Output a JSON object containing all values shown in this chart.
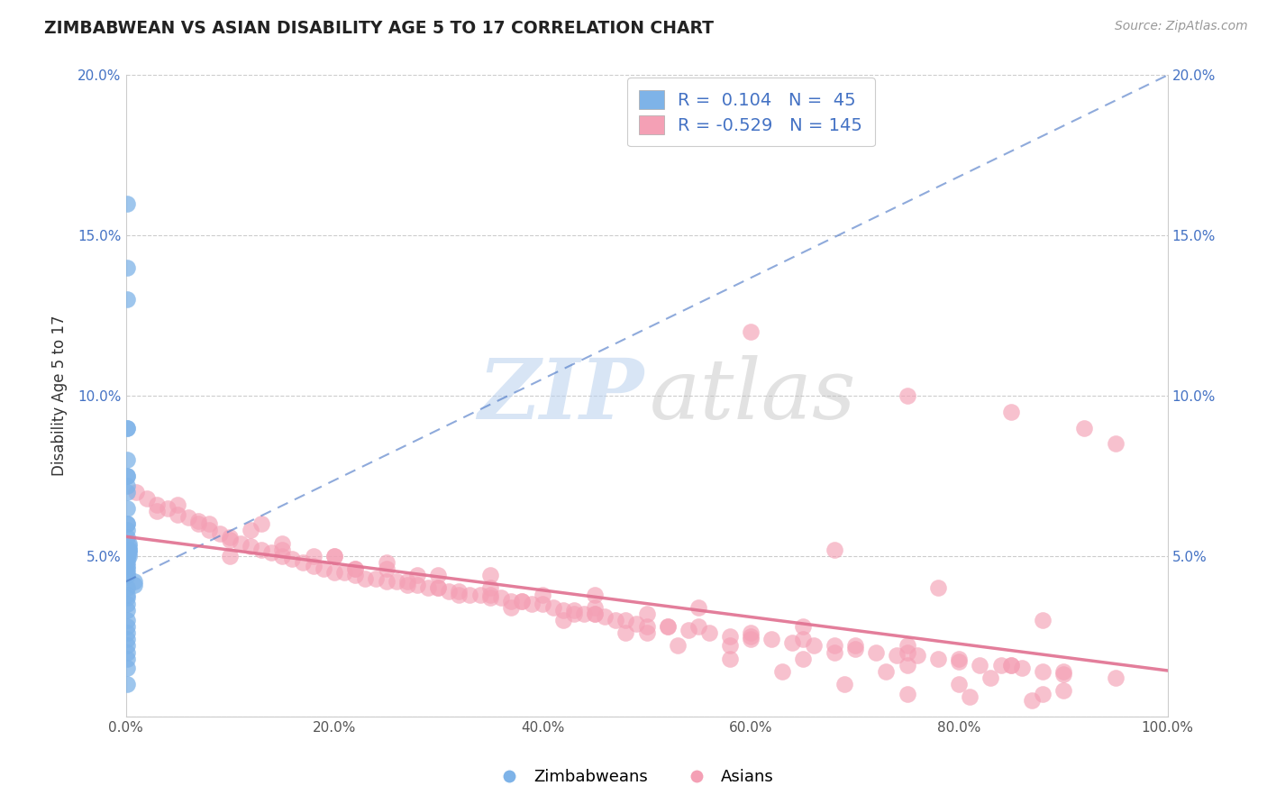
{
  "title": "ZIMBABWEAN VS ASIAN DISABILITY AGE 5 TO 17 CORRELATION CHART",
  "source": "Source: ZipAtlas.com",
  "ylabel": "Disability Age 5 to 17",
  "xlim": [
    0,
    1.0
  ],
  "ylim": [
    0,
    0.2
  ],
  "xticks": [
    0.0,
    0.2,
    0.4,
    0.6,
    0.8,
    1.0
  ],
  "yticks": [
    0.0,
    0.05,
    0.1,
    0.15,
    0.2
  ],
  "xtick_labels": [
    "0.0%",
    "20.0%",
    "40.0%",
    "60.0%",
    "80.0%",
    "100.0%"
  ],
  "ytick_labels": [
    "",
    "5.0%",
    "10.0%",
    "15.0%",
    "20.0%"
  ],
  "blue_R": 0.104,
  "blue_N": 45,
  "pink_R": -0.529,
  "pink_N": 145,
  "blue_color": "#7EB3E8",
  "pink_color": "#F4A0B5",
  "blue_line_color": "#4472C4",
  "pink_line_color": "#E07090",
  "background_color": "#FFFFFF",
  "legend_label_blue": "Zimbabweans",
  "legend_label_pink": "Asians",
  "blue_scatter_x": [
    0.001,
    0.001,
    0.001,
    0.001,
    0.001,
    0.001,
    0.001,
    0.001,
    0.001,
    0.001,
    0.001,
    0.001,
    0.001,
    0.001,
    0.001,
    0.003,
    0.003,
    0.003,
    0.003,
    0.003,
    0.003,
    0.001,
    0.001,
    0.001,
    0.001,
    0.001,
    0.001,
    0.001,
    0.001,
    0.008,
    0.008,
    0.001,
    0.001,
    0.001,
    0.001,
    0.001,
    0.001,
    0.001,
    0.001,
    0.001,
    0.001,
    0.001,
    0.001,
    0.001,
    0.001
  ],
  "blue_scatter_y": [
    0.16,
    0.14,
    0.13,
    0.09,
    0.09,
    0.08,
    0.075,
    0.075,
    0.072,
    0.07,
    0.065,
    0.06,
    0.06,
    0.058,
    0.056,
    0.054,
    0.053,
    0.052,
    0.052,
    0.051,
    0.05,
    0.05,
    0.05,
    0.049,
    0.048,
    0.047,
    0.046,
    0.045,
    0.044,
    0.042,
    0.041,
    0.04,
    0.038,
    0.037,
    0.035,
    0.033,
    0.03,
    0.028,
    0.026,
    0.024,
    0.022,
    0.02,
    0.018,
    0.015,
    0.01
  ],
  "pink_scatter_x": [
    0.01,
    0.02,
    0.03,
    0.04,
    0.05,
    0.06,
    0.07,
    0.08,
    0.09,
    0.1,
    0.11,
    0.12,
    0.13,
    0.14,
    0.15,
    0.16,
    0.17,
    0.18,
    0.19,
    0.2,
    0.21,
    0.22,
    0.23,
    0.24,
    0.25,
    0.26,
    0.27,
    0.28,
    0.29,
    0.3,
    0.31,
    0.32,
    0.33,
    0.34,
    0.35,
    0.36,
    0.37,
    0.38,
    0.39,
    0.4,
    0.41,
    0.42,
    0.43,
    0.44,
    0.45,
    0.46,
    0.47,
    0.48,
    0.49,
    0.5,
    0.52,
    0.54,
    0.56,
    0.58,
    0.6,
    0.62,
    0.64,
    0.66,
    0.68,
    0.7,
    0.72,
    0.74,
    0.76,
    0.78,
    0.8,
    0.82,
    0.84,
    0.86,
    0.88,
    0.9,
    0.07,
    0.1,
    0.13,
    0.18,
    0.22,
    0.27,
    0.32,
    0.37,
    0.42,
    0.48,
    0.53,
    0.58,
    0.63,
    0.69,
    0.75,
    0.81,
    0.87,
    0.03,
    0.08,
    0.15,
    0.22,
    0.3,
    0.38,
    0.45,
    0.52,
    0.6,
    0.68,
    0.75,
    0.83,
    0.9,
    0.05,
    0.12,
    0.2,
    0.28,
    0.35,
    0.43,
    0.5,
    0.58,
    0.65,
    0.73,
    0.8,
    0.88,
    0.6,
    0.75,
    0.85,
    0.92,
    0.95,
    0.68,
    0.78,
    0.88,
    0.25,
    0.35,
    0.45,
    0.55,
    0.65,
    0.75,
    0.85,
    0.1,
    0.2,
    0.3,
    0.4,
    0.5,
    0.6,
    0.7,
    0.8,
    0.9,
    0.15,
    0.25,
    0.35,
    0.45,
    0.55,
    0.65,
    0.75,
    0.85,
    0.95
  ],
  "pink_scatter_y": [
    0.07,
    0.068,
    0.066,
    0.065,
    0.063,
    0.062,
    0.061,
    0.06,
    0.057,
    0.056,
    0.054,
    0.053,
    0.052,
    0.051,
    0.05,
    0.049,
    0.048,
    0.047,
    0.046,
    0.045,
    0.045,
    0.044,
    0.043,
    0.043,
    0.042,
    0.042,
    0.041,
    0.041,
    0.04,
    0.04,
    0.039,
    0.039,
    0.038,
    0.038,
    0.037,
    0.037,
    0.036,
    0.036,
    0.035,
    0.035,
    0.034,
    0.033,
    0.033,
    0.032,
    0.032,
    0.031,
    0.03,
    0.03,
    0.029,
    0.028,
    0.028,
    0.027,
    0.026,
    0.025,
    0.025,
    0.024,
    0.023,
    0.022,
    0.022,
    0.021,
    0.02,
    0.019,
    0.019,
    0.018,
    0.017,
    0.016,
    0.016,
    0.015,
    0.014,
    0.013,
    0.06,
    0.05,
    0.06,
    0.05,
    0.046,
    0.042,
    0.038,
    0.034,
    0.03,
    0.026,
    0.022,
    0.018,
    0.014,
    0.01,
    0.007,
    0.006,
    0.005,
    0.064,
    0.058,
    0.052,
    0.046,
    0.04,
    0.036,
    0.032,
    0.028,
    0.024,
    0.02,
    0.016,
    0.012,
    0.008,
    0.066,
    0.058,
    0.05,
    0.044,
    0.038,
    0.032,
    0.026,
    0.022,
    0.018,
    0.014,
    0.01,
    0.007,
    0.12,
    0.1,
    0.095,
    0.09,
    0.085,
    0.052,
    0.04,
    0.03,
    0.048,
    0.044,
    0.038,
    0.034,
    0.028,
    0.022,
    0.016,
    0.055,
    0.05,
    0.044,
    0.038,
    0.032,
    0.026,
    0.022,
    0.018,
    0.014,
    0.054,
    0.046,
    0.04,
    0.034,
    0.028,
    0.024,
    0.02,
    0.016,
    0.012
  ]
}
